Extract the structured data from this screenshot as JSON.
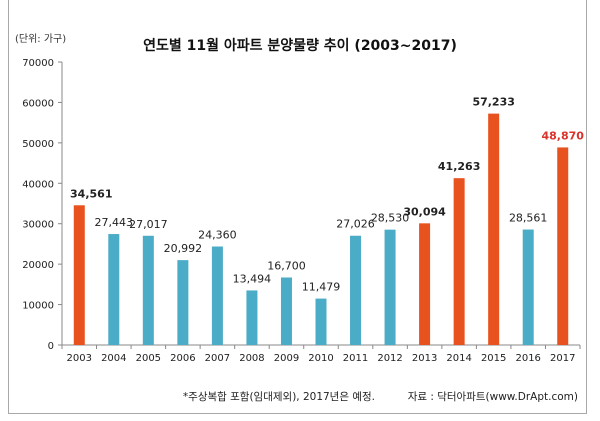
{
  "chart_data": {
    "type": "bar",
    "title": "연도별 11월 아파트 분양물량 추이 (2003~2017)",
    "unit_label": "(단위: 가구)",
    "categories": [
      "2003",
      "2004",
      "2005",
      "2006",
      "2007",
      "2008",
      "2009",
      "2010",
      "2011",
      "2012",
      "2013",
      "2014",
      "2015",
      "2016",
      "2017"
    ],
    "values": [
      34561,
      27443,
      27017,
      20992,
      24360,
      13494,
      16700,
      11479,
      27026,
      28530,
      30094,
      41263,
      57233,
      28561,
      48870
    ],
    "value_labels": [
      "34,561",
      "27,443",
      "27,017",
      "20,992",
      "24,360",
      "13,494",
      "16,700",
      "11,479",
      "27,026",
      "28,530",
      "30,094",
      "41,263",
      "57,233",
      "28,561",
      "48,870"
    ],
    "highlighted": [
      true,
      false,
      false,
      false,
      false,
      false,
      false,
      false,
      false,
      false,
      true,
      true,
      true,
      false,
      true
    ],
    "label_colors": [
      "#222222",
      "#222222",
      "#222222",
      "#222222",
      "#222222",
      "#222222",
      "#222222",
      "#222222",
      "#222222",
      "#222222",
      "#222222",
      "#222222",
      "#222222",
      "#222222",
      "#d9332b"
    ],
    "colors": {
      "highlight": "#e8521f",
      "normal": "#4aacc6"
    },
    "ylim": [
      0,
      70000
    ],
    "yticks": [
      "0",
      "10000",
      "20000",
      "30000",
      "40000",
      "50000",
      "60000",
      "70000"
    ],
    "grid": false,
    "footnote": "*주상복합 포함(임대제외), 2017년은 예정.",
    "source": "자료 : 닥터아파트(www.DrApt.com)"
  }
}
